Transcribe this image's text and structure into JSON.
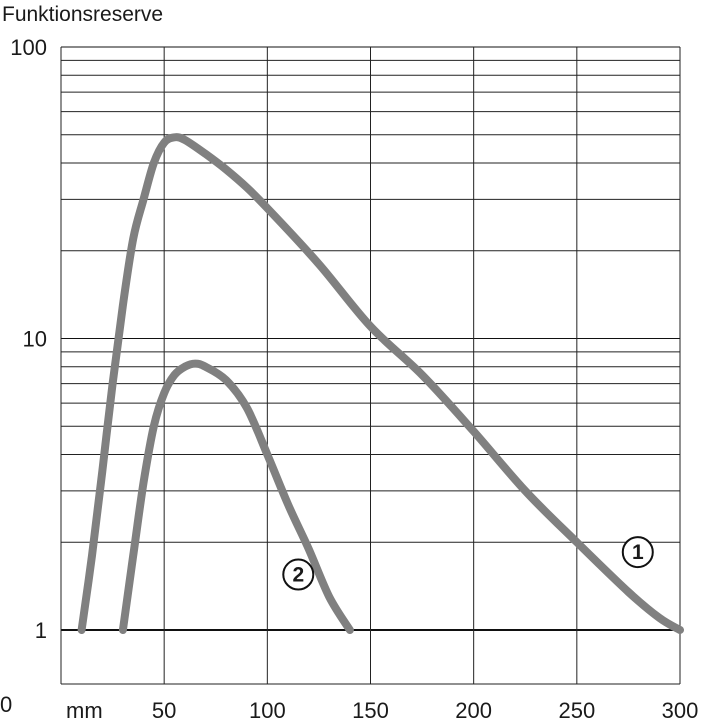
{
  "chart_data": {
    "type": "line",
    "title": "",
    "ylabel": "Funktionsreserve",
    "xlabel": "",
    "x_unit": "mm",
    "y_zero_label": "0",
    "x_ticks": [
      50,
      100,
      150,
      200,
      250,
      300
    ],
    "y_ticks": [
      1,
      10,
      100
    ],
    "xlim": [
      0,
      300
    ],
    "ylim": [
      1,
      100
    ],
    "y_scale": "log",
    "grid": true,
    "series": [
      {
        "name": "①",
        "color": "#808080",
        "x": [
          10,
          15,
          20,
          25,
          30,
          35,
          40,
          45,
          50,
          55,
          60,
          70,
          80,
          90,
          100,
          125,
          150,
          175,
          200,
          225,
          250,
          275,
          290,
          300
        ],
        "y": [
          1.0,
          1.8,
          3.5,
          7,
          13,
          22,
          30,
          40,
          47,
          49,
          48,
          43,
          38,
          33,
          28,
          18,
          11,
          7.5,
          4.8,
          3.0,
          2.0,
          1.35,
          1.1,
          1.0
        ]
      },
      {
        "name": "②",
        "color": "#808080",
        "x": [
          30,
          35,
          40,
          45,
          50,
          55,
          60,
          65,
          70,
          80,
          90,
          100,
          110,
          120,
          130,
          140
        ],
        "y": [
          1.0,
          1.8,
          3.2,
          5,
          6.5,
          7.5,
          8.0,
          8.2,
          8.0,
          7.2,
          5.8,
          4.0,
          2.7,
          1.9,
          1.3,
          1.0
        ]
      }
    ],
    "annotations": [
      "①",
      "②"
    ]
  }
}
